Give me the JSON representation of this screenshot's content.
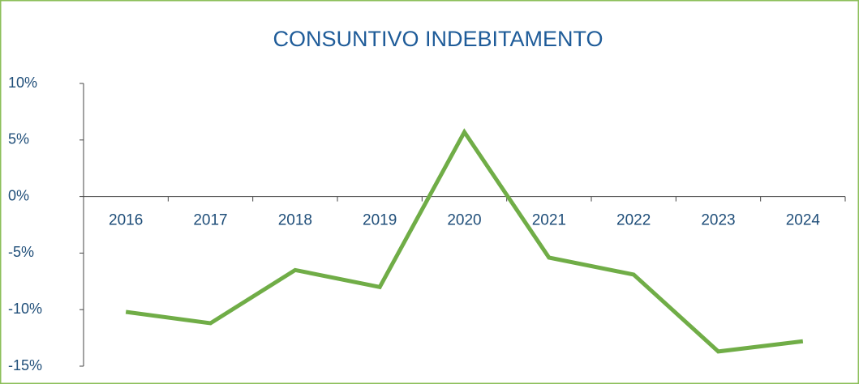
{
  "chart_data": {
    "type": "line",
    "title": "CONSUNTIVO INDEBITAMENTO",
    "categories": [
      "2016",
      "2017",
      "2018",
      "2019",
      "2020",
      "2021",
      "2022",
      "2023",
      "2024"
    ],
    "series": [
      {
        "name": "Indebitamento",
        "color": "#70ad47",
        "values": [
          -10.2,
          -11.2,
          -6.5,
          -8.0,
          5.7,
          -5.4,
          -6.9,
          -13.7,
          -12.8
        ]
      }
    ],
    "ylim": [
      -15,
      10
    ],
    "yticks": [
      {
        "value": -15,
        "label": "-15%"
      },
      {
        "value": -10,
        "label": "-10%"
      },
      {
        "value": -5,
        "label": "-5%"
      },
      {
        "value": 0,
        "label": "0%"
      },
      {
        "value": 5,
        "label": "5%"
      },
      {
        "value": 10,
        "label": "10%"
      }
    ],
    "grid": false,
    "legend": false
  }
}
